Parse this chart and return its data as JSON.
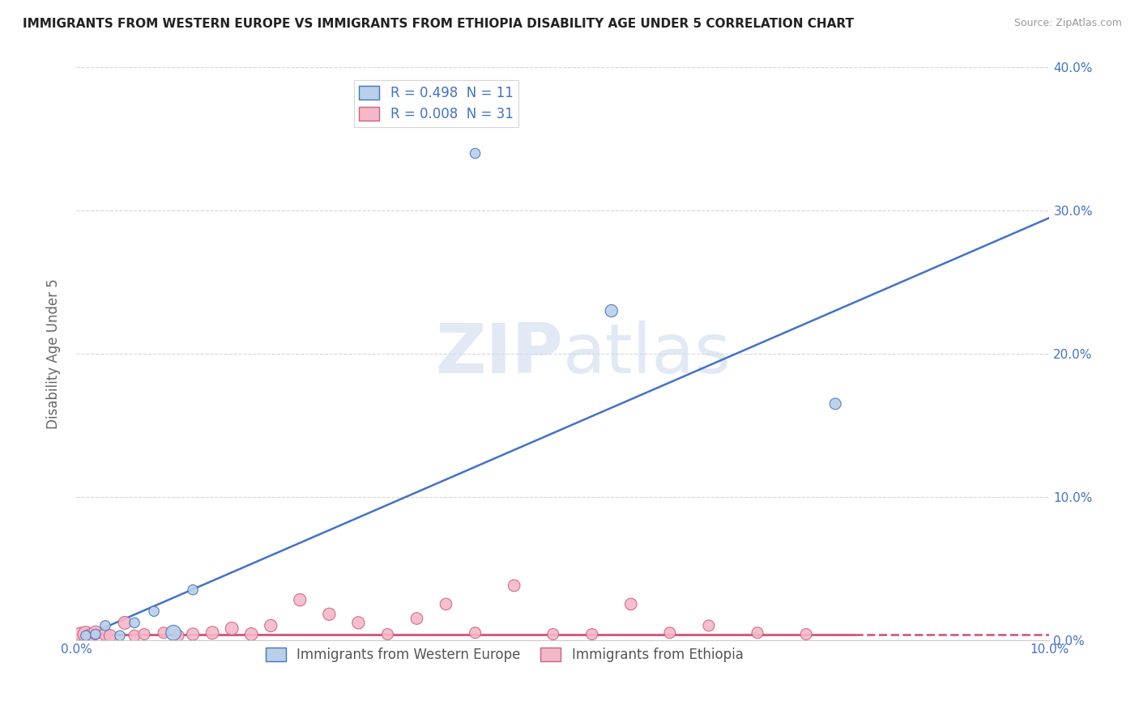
{
  "title": "IMMIGRANTS FROM WESTERN EUROPE VS IMMIGRANTS FROM ETHIOPIA DISABILITY AGE UNDER 5 CORRELATION CHART",
  "source": "Source: ZipAtlas.com",
  "ylabel": "Disability Age Under 5",
  "xlim": [
    0.0,
    10.0
  ],
  "ylim": [
    0.0,
    40.0
  ],
  "yticks": [
    0.0,
    10.0,
    20.0,
    30.0,
    40.0
  ],
  "xticks": [
    0.0,
    2.0,
    4.0,
    6.0,
    8.0,
    10.0
  ],
  "blue_R": 0.498,
  "blue_N": 11,
  "pink_R": 0.008,
  "pink_N": 31,
  "blue_color": "#b8d0e8",
  "blue_line_color": "#4472c4",
  "pink_color": "#f4b8c8",
  "pink_line_color": "#d06080",
  "blue_scatter_x": [
    0.1,
    0.2,
    0.3,
    0.45,
    0.6,
    0.8,
    1.0,
    1.2,
    4.1,
    5.5,
    7.8
  ],
  "blue_scatter_y": [
    0.3,
    0.4,
    1.0,
    0.3,
    1.2,
    2.0,
    0.5,
    3.5,
    34.0,
    23.0,
    16.5
  ],
  "blue_scatter_sizes": [
    80,
    80,
    80,
    80,
    80,
    80,
    180,
    80,
    80,
    120,
    100
  ],
  "pink_scatter_x": [
    0.05,
    0.1,
    0.15,
    0.2,
    0.3,
    0.35,
    0.5,
    0.6,
    0.7,
    0.9,
    1.05,
    1.2,
    1.4,
    1.6,
    1.8,
    2.0,
    2.3,
    2.6,
    2.9,
    3.2,
    3.5,
    3.8,
    4.1,
    4.5,
    4.9,
    5.3,
    5.7,
    6.1,
    6.5,
    7.0,
    7.5
  ],
  "pink_scatter_y": [
    0.2,
    0.4,
    0.3,
    0.5,
    0.4,
    0.3,
    1.2,
    0.3,
    0.4,
    0.5,
    0.3,
    0.4,
    0.5,
    0.8,
    0.4,
    1.0,
    2.8,
    1.8,
    1.2,
    0.4,
    1.5,
    2.5,
    0.5,
    3.8,
    0.4,
    0.4,
    2.5,
    0.5,
    1.0,
    0.5,
    0.4
  ],
  "pink_scatter_sizes": [
    300,
    200,
    150,
    150,
    130,
    120,
    130,
    100,
    100,
    100,
    100,
    120,
    130,
    130,
    130,
    120,
    120,
    120,
    120,
    100,
    110,
    110,
    100,
    110,
    100,
    100,
    110,
    100,
    100,
    100,
    100
  ],
  "blue_trend_x": [
    0.0,
    10.0
  ],
  "blue_trend_y": [
    0.0,
    29.5
  ],
  "pink_trend_y": 0.35,
  "pink_dash_start": 8.0,
  "watermark_zip": "ZIP",
  "watermark_atlas": "atlas",
  "legend_label_blue": "R = 0.498  N = 11",
  "legend_label_pink": "R = 0.008  N = 31",
  "legend_blue_label": "Immigrants from Western Europe",
  "legend_pink_label": "Immigrants from Ethiopia",
  "bg_color": "#ffffff",
  "grid_color": "#cccccc"
}
